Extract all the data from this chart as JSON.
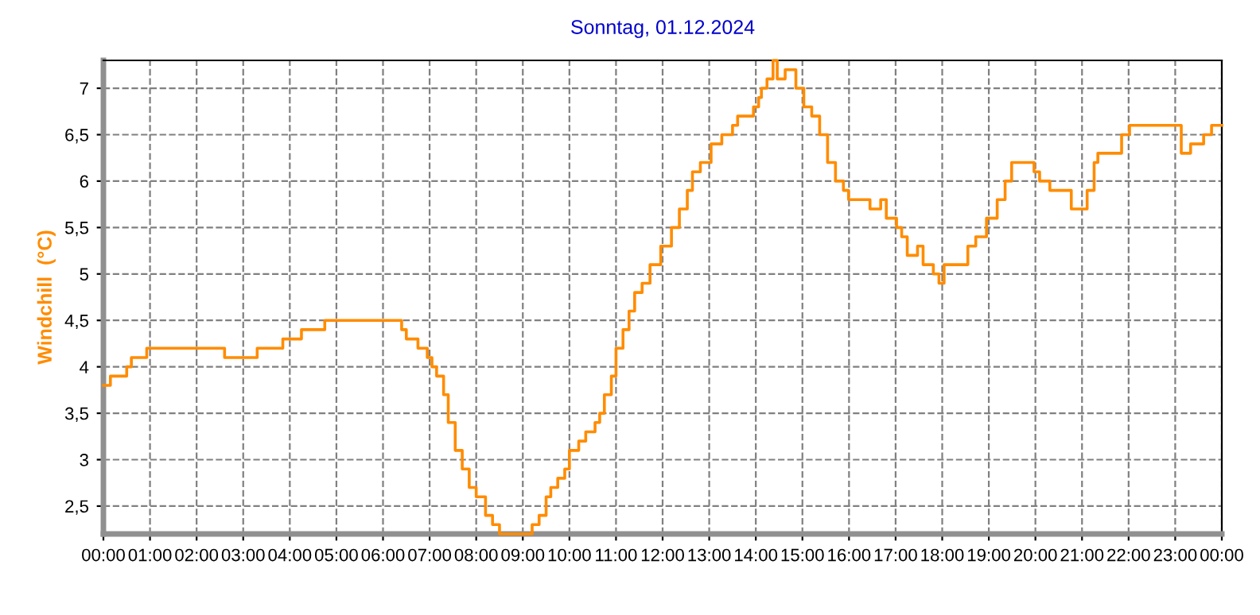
{
  "chart_data": {
    "type": "step",
    "title": "Sonntag, 01.12.2024",
    "ylabel": "Windchill  (°C)",
    "x": [
      0,
      0.15,
      0.5,
      0.6,
      0.93,
      2.6,
      3.3,
      3.85,
      4.25,
      4.75,
      6.4,
      6.5,
      6.75,
      6.95,
      7.05,
      7.15,
      7.3,
      7.4,
      7.55,
      7.7,
      7.85,
      8.0,
      8.2,
      8.35,
      8.5,
      9.2,
      9.35,
      9.5,
      9.6,
      9.75,
      9.9,
      10.0,
      10.2,
      10.35,
      10.55,
      10.65,
      10.75,
      10.9,
      11.0,
      11.15,
      11.28,
      11.4,
      11.56,
      11.73,
      11.96,
      12.19,
      12.36,
      12.53,
      12.64,
      12.81,
      13.04,
      13.27,
      13.5,
      13.61,
      13.95,
      14.06,
      14.12,
      14.24,
      14.37,
      14.46,
      14.63,
      14.86,
      15.03,
      15.2,
      15.37,
      15.54,
      15.71,
      15.88,
      15.99,
      16.45,
      16.68,
      16.8,
      17.02,
      17.13,
      17.25,
      17.47,
      17.59,
      17.81,
      17.93,
      18.04,
      18.55,
      18.72,
      18.95,
      19.18,
      19.35,
      19.49,
      19.97,
      20.09,
      20.31,
      20.77,
      21.11,
      21.26,
      21.34,
      21.85,
      22.02,
      23.13,
      23.33,
      23.61,
      23.78,
      24
    ],
    "series": [
      {
        "color": "#ff8c00",
        "values": [
          3.8,
          3.9,
          4.0,
          4.1,
          4.2,
          4.1,
          4.2,
          4.3,
          4.4,
          4.5,
          4.4,
          4.3,
          4.2,
          4.1,
          4.0,
          3.9,
          3.7,
          3.4,
          3.1,
          2.9,
          2.7,
          2.6,
          2.4,
          2.3,
          2.2,
          2.3,
          2.4,
          2.6,
          2.7,
          2.8,
          2.9,
          3.1,
          3.2,
          3.3,
          3.4,
          3.5,
          3.7,
          3.9,
          4.2,
          4.4,
          4.6,
          4.8,
          4.9,
          5.1,
          5.3,
          5.5,
          5.7,
          5.9,
          6.1,
          6.2,
          6.4,
          6.5,
          6.6,
          6.7,
          6.8,
          6.9,
          7.0,
          7.1,
          7.3,
          7.1,
          7.2,
          7.0,
          6.8,
          6.7,
          6.5,
          6.2,
          6.0,
          5.9,
          5.8,
          5.7,
          5.8,
          5.6,
          5.5,
          5.4,
          5.2,
          5.3,
          5.1,
          5.0,
          4.9,
          5.1,
          5.3,
          5.4,
          5.6,
          5.8,
          6.0,
          6.2,
          6.1,
          6.0,
          5.9,
          5.7,
          5.9,
          6.2,
          6.3,
          6.5,
          6.6,
          6.3,
          6.4,
          6.5,
          6.6,
          6.6
        ]
      }
    ],
    "xlim": [
      0,
      24
    ],
    "ylim": [
      2.2,
      7.3
    ],
    "xticks": [
      {
        "value": 0,
        "label": "00:00"
      },
      {
        "value": 1,
        "label": "01:00"
      },
      {
        "value": 2,
        "label": "02:00"
      },
      {
        "value": 3,
        "label": "03:00"
      },
      {
        "value": 4,
        "label": "04:00"
      },
      {
        "value": 5,
        "label": "05:00"
      },
      {
        "value": 6,
        "label": "06:00"
      },
      {
        "value": 7,
        "label": "07:00"
      },
      {
        "value": 8,
        "label": "08:00"
      },
      {
        "value": 9,
        "label": "09:00"
      },
      {
        "value": 10,
        "label": "10:00"
      },
      {
        "value": 11,
        "label": "11:00"
      },
      {
        "value": 12,
        "label": "12:00"
      },
      {
        "value": 13,
        "label": "13:00"
      },
      {
        "value": 14,
        "label": "14:00"
      },
      {
        "value": 15,
        "label": "15:00"
      },
      {
        "value": 16,
        "label": "16:00"
      },
      {
        "value": 17,
        "label": "17:00"
      },
      {
        "value": 18,
        "label": "18:00"
      },
      {
        "value": 19,
        "label": "19:00"
      },
      {
        "value": 20,
        "label": "20:00"
      },
      {
        "value": 21,
        "label": "21:00"
      },
      {
        "value": 22,
        "label": "22:00"
      },
      {
        "value": 23,
        "label": "23:00"
      },
      {
        "value": 24,
        "label": "00:00"
      }
    ],
    "yticks": [
      {
        "value": 2.5,
        "label": "2,5"
      },
      3,
      {
        "value": 3.5,
        "label": "3,5"
      },
      4,
      {
        "value": 4.5,
        "label": "4,5"
      },
      5,
      {
        "value": 5.5,
        "label": "5,5"
      },
      6,
      {
        "value": 6.5,
        "label": "6,5"
      },
      7
    ],
    "grid": true,
    "line_style": "solid",
    "legend": false
  }
}
